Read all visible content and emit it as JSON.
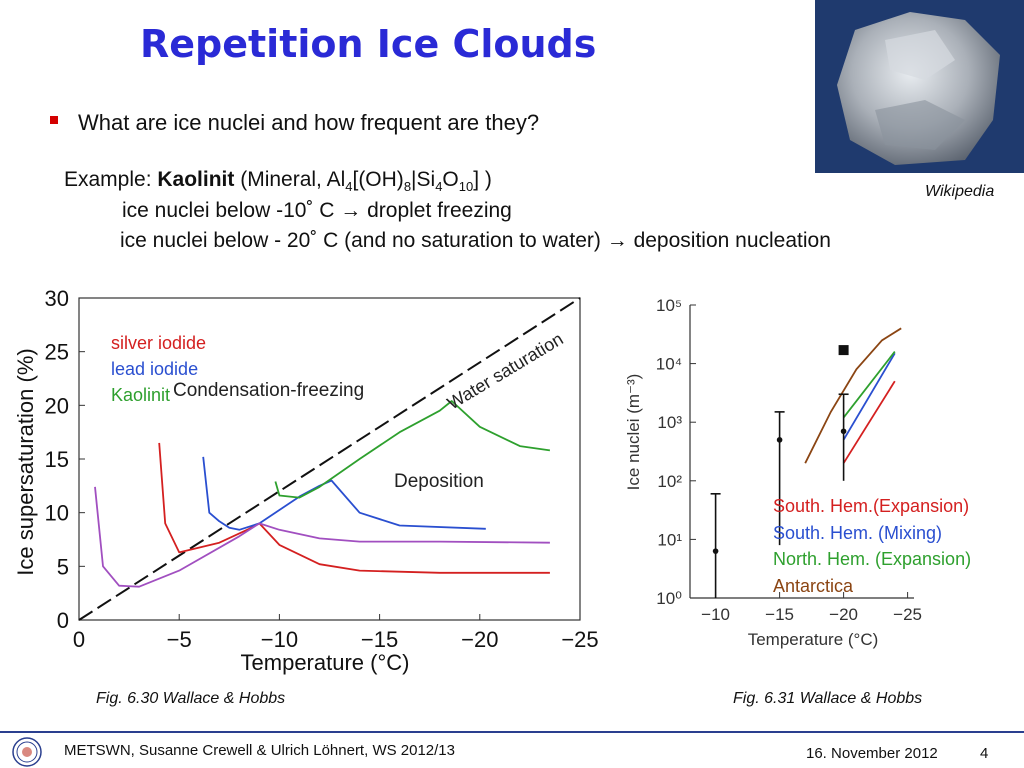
{
  "slide": {
    "title": "Repetition Ice Clouds",
    "image_credit": "Wikipedia",
    "bullet": "What are ice nuclei and how frequent are they?",
    "example": {
      "lead": "Example: ",
      "mineral": "Kaolinit",
      "formula_open": " (Mineral, Al",
      "s1": "4",
      "f2": "[(OH)",
      "s2": "8",
      "f3": "|Si",
      "s3": "4",
      "f4": "O",
      "s4": "10",
      "f5": "] )"
    },
    "line2": "ice nuclei below   -10˚   C  → droplet freezing",
    "line3": "ice nuclei below  - 20˚   C (and no saturation to water) → deposition nucleation",
    "caption_left": "Fig. 6.30 Wallace & Hobbs",
    "caption_right": "Fig. 6.31 Wallace & Hobbs"
  },
  "footer": {
    "left": "METSWN, Susanne Crewell & Ulrich Löhnert, WS 2012/13",
    "date": "16. November 2012",
    "page": "4"
  },
  "colors": {
    "title": "#2a2ad6",
    "bullet": "#d40000",
    "silver_iodide": "#d42020",
    "lead_iodide": "#2a4fd0",
    "kaolinit": "#2ea02e",
    "antarctica": "#8b4513",
    "deposition_purple": "#a14fc0"
  },
  "icons": {
    "bullet": "square-bullet-icon",
    "logo": "university-seal-icon",
    "photo": "kaolinite-mineral-photo"
  },
  "chart_data": [
    {
      "type": "line",
      "xlabel": "Temperature (°C)",
      "ylabel": "Ice supersaturation (%)",
      "xticks": [
        "0",
        "−5",
        "−10",
        "−15",
        "−20",
        "−25"
      ],
      "yticks": [
        "0",
        "5",
        "10",
        "15",
        "20",
        "25",
        "30"
      ],
      "xlim": [
        0,
        -25
      ],
      "ylim": [
        0,
        30
      ],
      "legend": [
        "silver iodide",
        "lead iodide",
        "Kaolinit"
      ],
      "annotations": [
        "Condensation-freezing",
        "Water saturation",
        "Deposition"
      ],
      "series": [
        {
          "name": "Water saturation",
          "x": [
            0,
            -25
          ],
          "y": [
            0,
            30
          ]
        },
        {
          "name": "silver iodide",
          "x": [
            -4,
            -4.3,
            -5,
            -7,
            -8.5,
            -9,
            -10,
            -12,
            -14,
            -18,
            -23.5
          ],
          "y": [
            16.5,
            9,
            6.3,
            7.2,
            8.5,
            9,
            7,
            5.2,
            4.6,
            4.4,
            4.4
          ]
        },
        {
          "name": "lead iodide",
          "x": [
            -6.2,
            -6.5,
            -7,
            -7.5,
            -8,
            -9,
            -11,
            -12,
            -12.6,
            -14,
            -16,
            -20.3
          ],
          "y": [
            15.2,
            10,
            9.2,
            8.6,
            8.4,
            9,
            11.5,
            12.5,
            13,
            10,
            8.8,
            8.5
          ]
        },
        {
          "name": "Kaolinit",
          "x": [
            -9.8,
            -10,
            -11,
            -12,
            -14,
            -16,
            -18,
            -18.6,
            -20,
            -22,
            -23.5
          ],
          "y": [
            12.9,
            11.6,
            11.4,
            12.4,
            15,
            17.5,
            19.5,
            20.4,
            18,
            16.2,
            15.8
          ]
        },
        {
          "name": "deposition",
          "x": [
            -0.8,
            -1.2,
            -2,
            -3,
            -5,
            -8,
            -9,
            -10,
            -12,
            -14,
            -18,
            -23.5
          ],
          "y": [
            12.4,
            5,
            3.2,
            3.1,
            4.6,
            7.8,
            9,
            8.4,
            7.6,
            7.3,
            7.3,
            7.2
          ]
        }
      ]
    },
    {
      "type": "scatter",
      "xlabel": "Temperature (°C)",
      "ylabel": "Ice nuclei (m⁻³)",
      "yscale": "log",
      "xticks": [
        "−10",
        "−15",
        "−20",
        "−25"
      ],
      "yticks": [
        "10⁰",
        "10¹",
        "10²",
        "10³",
        "10⁴",
        "10⁵"
      ],
      "xlim": [
        -8,
        -25.5
      ],
      "ylim": [
        1,
        100000
      ],
      "legend": [
        "South. Hem.(Expansion)",
        "South. Hem. (Mixing)",
        "North. Hem. (Expansion)",
        "Antarctica"
      ],
      "points": [
        {
          "x": -10,
          "y": 6.3,
          "err_low": 1,
          "err_high": 60
        },
        {
          "x": -15,
          "y": 500,
          "err_low": 8,
          "err_high": 1500
        },
        {
          "x": -20,
          "y": 700,
          "err_low": 100,
          "err_high": 3000
        }
      ],
      "square_marker": {
        "x": -20,
        "y": 17000
      },
      "series": [
        {
          "name": "South. Hem.(Expansion)",
          "x": [
            -20,
            -24
          ],
          "y": [
            200,
            5000
          ]
        },
        {
          "name": "South. Hem. (Mixing)",
          "x": [
            -20,
            -24
          ],
          "y": [
            500,
            15000
          ]
        },
        {
          "name": "North. Hem. (Expansion)",
          "x": [
            -20,
            -24
          ],
          "y": [
            1200,
            16000
          ]
        },
        {
          "name": "Antarctica",
          "x": [
            -17,
            -19,
            -21,
            -23,
            -24.5
          ],
          "y": [
            200,
            1500,
            8000,
            25000,
            40000
          ]
        }
      ]
    }
  ]
}
